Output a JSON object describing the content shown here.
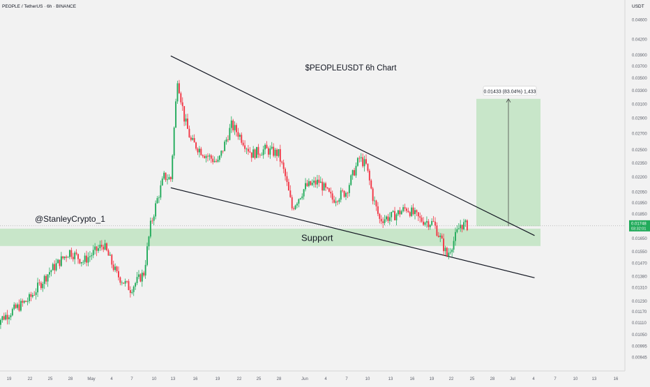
{
  "header": {
    "symbol_line": "PEOPLE / TetherUS · 6h · BINANCE"
  },
  "chart_data": {
    "type": "candlestick",
    "title": "$PEOPLEUSDT 6h Chart",
    "watermark": "@StanleyCrypto_1",
    "currency_label": "USDT",
    "y_axis": {
      "scale": "log",
      "range": [
        0.0092,
        0.0485
      ],
      "ticks": [
        "0.04600",
        "0.04200",
        "0.03900",
        "0.03700",
        "0.03500",
        "0.03300",
        "0.03100",
        "0.02900",
        "0.02700",
        "0.02500",
        "0.02350",
        "0.02200",
        "0.02050",
        "0.01950",
        "0.01850",
        "0.01650",
        "0.01550",
        "0.01470",
        "0.01380",
        "0.01310",
        "0.01230",
        "0.01170",
        "0.01110",
        "0.01050",
        "0.00995",
        "0.00945"
      ]
    },
    "x_axis": {
      "ticks": [
        "19",
        "22",
        "25",
        "28",
        "May",
        "4",
        "7",
        "10",
        "13",
        "16",
        "19",
        "22",
        "25",
        "28",
        "Jun",
        "4",
        "7",
        "10",
        "13",
        "16",
        "19",
        "22",
        "25",
        "28",
        "Jul",
        "4",
        "7",
        "10",
        "13",
        "16"
      ]
    },
    "current_price": {
      "value": "0.01748",
      "countdown": "03:32:01"
    },
    "measure_label": "0.01433 (83.04%) 1,433",
    "support_zone": {
      "label": "Support",
      "low": 0.0159,
      "high": 0.01725,
      "color": "#c8e6c9"
    },
    "target_zone": {
      "low": 0.01745,
      "high": 0.03172,
      "color": "#c8e6c9"
    },
    "trendlines": [
      {
        "name": "upper-resistance",
        "from": [
          "May 13",
          0.0388
        ],
        "to": [
          "Jul 6",
          0.0167
        ]
      },
      {
        "name": "lower-support",
        "from": [
          "May 13",
          0.0209
        ],
        "to": [
          "Jul 6",
          0.0137
        ]
      }
    ],
    "colors": {
      "up": "#22ab5b",
      "down": "#f23645",
      "price_tag": "#22ab5b",
      "line": "#131722"
    },
    "price_path": [
      [
        "Apr 17",
        0.0111
      ],
      [
        "Apr 19",
        0.0116
      ],
      [
        "Apr 22",
        0.0124
      ],
      [
        "Apr 25",
        0.0141
      ],
      [
        "Apr 28",
        0.0155
      ],
      [
        "Apr 30",
        0.0148
      ],
      [
        "May 3",
        0.016
      ],
      [
        "May 5",
        0.0139
      ],
      [
        "May 7",
        0.013
      ],
      [
        "May 9",
        0.014
      ],
      [
        "May 10",
        0.0175
      ],
      [
        "May 11",
        0.0198
      ],
      [
        "May 12",
        0.022
      ],
      [
        "May 13",
        0.0218
      ],
      [
        "May 14",
        0.035
      ],
      [
        "May 15",
        0.029
      ],
      [
        "May 16",
        0.026
      ],
      [
        "May 18",
        0.0245
      ],
      [
        "May 20",
        0.0235
      ],
      [
        "May 22",
        0.028
      ],
      [
        "May 23",
        0.027
      ],
      [
        "May 25",
        0.0245
      ],
      [
        "May 27",
        0.025
      ],
      [
        "May 29",
        0.0245
      ],
      [
        "May 30",
        0.022
      ],
      [
        "May 31",
        0.019
      ],
      [
        "Jun 2",
        0.021
      ],
      [
        "Jun 4",
        0.0215
      ],
      [
        "Jun 6",
        0.0198
      ],
      [
        "Jun 8",
        0.0205
      ],
      [
        "Jun 10",
        0.024
      ],
      [
        "Jun 11",
        0.0232
      ],
      [
        "Jun 12",
        0.02
      ],
      [
        "Jun 13",
        0.018
      ],
      [
        "Jun 15",
        0.0183
      ],
      [
        "Jun 17",
        0.019
      ],
      [
        "Jun 19",
        0.018
      ],
      [
        "Jun 21",
        0.0177
      ],
      [
        "Jun 22",
        0.0165
      ],
      [
        "Jun 23",
        0.0152
      ],
      [
        "Jun 24",
        0.0163
      ],
      [
        "Jun 25",
        0.0176
      ],
      [
        "Jun 26",
        0.0175
      ]
    ]
  }
}
